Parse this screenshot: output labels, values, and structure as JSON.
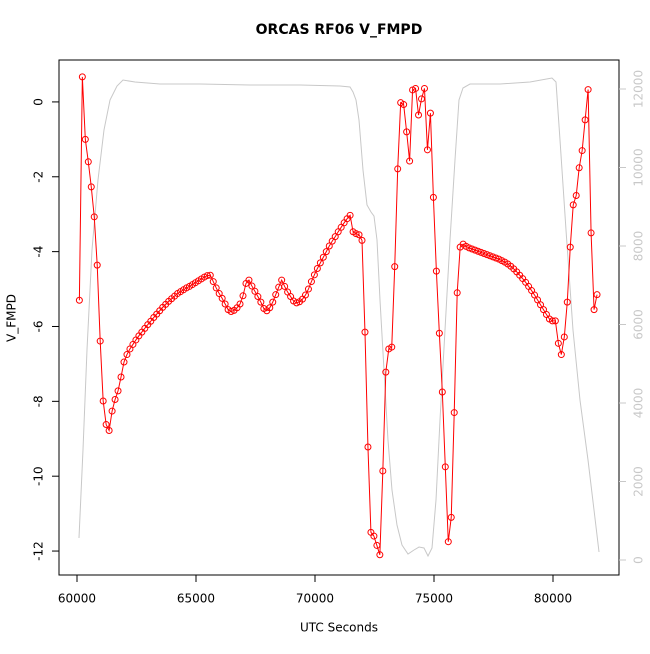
{
  "chart_data": {
    "type": "line",
    "title": "ORCAS RF06 V_FMPD",
    "x_label": "UTC Seconds",
    "y_label": "V_FMPD",
    "xlim": [
      59244,
      82773
    ],
    "ylim": [
      -12.64,
      1.12
    ],
    "y2lim": [
      -382,
      12739
    ],
    "xticks": [
      60000,
      65000,
      70000,
      75000,
      80000
    ],
    "yticks": [
      -12,
      -10,
      -8,
      -6,
      -4,
      -2,
      0
    ],
    "y2ticks": [
      0,
      2000,
      4000,
      6000,
      8000,
      10000,
      12000
    ],
    "series": [
      {
        "color": "#c8c8c8",
        "axis": "y2",
        "markers": false,
        "x": [
          60084,
          60252,
          60420,
          60630,
          60882,
          61134,
          61387,
          61681,
          61933,
          62437,
          63487,
          65168,
          67269,
          69370,
          71050,
          71471,
          71597,
          71723,
          71849,
          72017,
          72185,
          72353,
          72479,
          72605,
          72731,
          72899,
          73067,
          73235,
          73445,
          73655,
          73908,
          74160,
          74370,
          74580,
          74748,
          74916,
          75084,
          75252,
          75462,
          75672,
          75882,
          76050,
          76218,
          76513,
          77773,
          79034,
          79958,
          80126,
          80294,
          80546,
          80840,
          81134,
          81471,
          81723,
          81933
        ],
        "values": [
          560,
          2803,
          5350,
          7898,
          9682,
          10955,
          11720,
          12076,
          12229,
          12178,
          12127,
          12127,
          12102,
          12102,
          12076,
          12051,
          11924,
          11720,
          11210,
          9936,
          9045,
          8866,
          8764,
          8153,
          6624,
          4841,
          3057,
          1783,
          892,
          382,
          153,
          255,
          331,
          306,
          102,
          306,
          1529,
          3567,
          5860,
          8153,
          10191,
          11720,
          12025,
          12127,
          12127,
          12178,
          12280,
          12178,
          10701,
          8408,
          5860,
          4076,
          2548,
          1274,
          204
        ]
      },
      {
        "color": "#ff0000",
        "markers": true,
        "x": [
          60100,
          60225,
          60350,
          60475,
          60600,
          60725,
          60850,
          60975,
          61100,
          61225,
          61350,
          61475,
          61600,
          61725,
          61850,
          61975,
          62100,
          62225,
          62350,
          62475,
          62600,
          62725,
          62850,
          62975,
          63100,
          63225,
          63350,
          63475,
          63600,
          63725,
          63850,
          63975,
          64100,
          64225,
          64350,
          64475,
          64600,
          64725,
          64850,
          64975,
          65100,
          65225,
          65350,
          65475,
          65600,
          65725,
          65850,
          65975,
          66100,
          66225,
          66350,
          66475,
          66600,
          66725,
          66850,
          66975,
          67100,
          67225,
          67350,
          67475,
          67600,
          67725,
          67850,
          67975,
          68100,
          68225,
          68350,
          68475,
          68600,
          68725,
          68850,
          68975,
          69100,
          69225,
          69350,
          69475,
          69600,
          69725,
          69850,
          69975,
          70100,
          70225,
          70350,
          70475,
          70600,
          70725,
          70850,
          70975,
          71100,
          71225,
          71350,
          71475,
          71600,
          71725,
          71850,
          71975,
          72100,
          72225,
          72350,
          72475,
          72600,
          72725,
          72850,
          72975,
          73100,
          73225,
          73350,
          73475,
          73600,
          73725,
          73850,
          73975,
          74100,
          74225,
          74350,
          74475,
          74600,
          74725,
          74850,
          74975,
          75100,
          75225,
          75350,
          75475,
          75600,
          75725,
          75850,
          75975,
          76100,
          76225,
          76350,
          76475,
          76600,
          76725,
          76850,
          76975,
          77100,
          77225,
          77350,
          77475,
          77600,
          77725,
          77850,
          77975,
          78100,
          78225,
          78350,
          78475,
          78600,
          78725,
          78850,
          78975,
          79100,
          79225,
          79350,
          79475,
          79600,
          79725,
          79850,
          79975,
          80100,
          80225,
          80350,
          80475,
          80600,
          80725,
          80850,
          80975,
          81100,
          81225,
          81350,
          81475,
          81600,
          81725,
          81850
        ],
        "values": [
          -5.3,
          0.67,
          -1.0,
          -1.6,
          -2.27,
          -3.07,
          -4.36,
          -6.39,
          -7.99,
          -8.62,
          -8.78,
          -8.26,
          -7.95,
          -7.72,
          -7.35,
          -6.95,
          -6.75,
          -6.6,
          -6.48,
          -6.36,
          -6.25,
          -6.15,
          -6.05,
          -5.95,
          -5.86,
          -5.76,
          -5.67,
          -5.58,
          -5.49,
          -5.41,
          -5.33,
          -5.26,
          -5.19,
          -5.12,
          -5.07,
          -5.02,
          -4.97,
          -4.93,
          -4.88,
          -4.83,
          -4.78,
          -4.73,
          -4.68,
          -4.64,
          -4.63,
          -4.8,
          -4.97,
          -5.12,
          -5.25,
          -5.4,
          -5.55,
          -5.6,
          -5.57,
          -5.5,
          -5.4,
          -5.18,
          -4.85,
          -4.76,
          -4.92,
          -5.06,
          -5.2,
          -5.35,
          -5.52,
          -5.58,
          -5.5,
          -5.35,
          -5.15,
          -4.95,
          -4.76,
          -4.93,
          -5.08,
          -5.2,
          -5.32,
          -5.37,
          -5.34,
          -5.27,
          -5.16,
          -5.0,
          -4.8,
          -4.62,
          -4.45,
          -4.3,
          -4.15,
          -4.0,
          -3.85,
          -3.72,
          -3.6,
          -3.47,
          -3.35,
          -3.23,
          -3.12,
          -3.03,
          -3.47,
          -3.52,
          -3.55,
          -3.7,
          -6.15,
          -9.22,
          -11.5,
          -11.6,
          -11.85,
          -12.1,
          -9.86,
          -7.22,
          -6.6,
          -6.55,
          -4.4,
          -1.79,
          -0.02,
          -0.07,
          -0.8,
          -1.58,
          0.32,
          0.36,
          -0.35,
          0.08,
          0.36,
          -1.28,
          -0.3,
          -2.55,
          -4.52,
          -6.18,
          -7.75,
          -9.75,
          -11.75,
          -11.1,
          -8.3,
          -5.1,
          -3.88,
          -3.8,
          -3.86,
          -3.9,
          -3.93,
          -3.96,
          -3.99,
          -4.02,
          -4.05,
          -4.08,
          -4.11,
          -4.14,
          -4.17,
          -4.2,
          -4.24,
          -4.28,
          -4.33,
          -4.39,
          -4.46,
          -4.54,
          -4.63,
          -4.72,
          -4.82,
          -4.93,
          -5.04,
          -5.16,
          -5.29,
          -5.42,
          -5.55,
          -5.68,
          -5.8,
          -5.85,
          -5.85,
          -6.45,
          -6.75,
          -6.28,
          -5.35,
          -3.88,
          -2.75,
          -2.5,
          -1.76,
          -1.3,
          -0.48,
          0.33,
          -3.5,
          -5.55,
          -5.15
        ]
      }
    ]
  }
}
